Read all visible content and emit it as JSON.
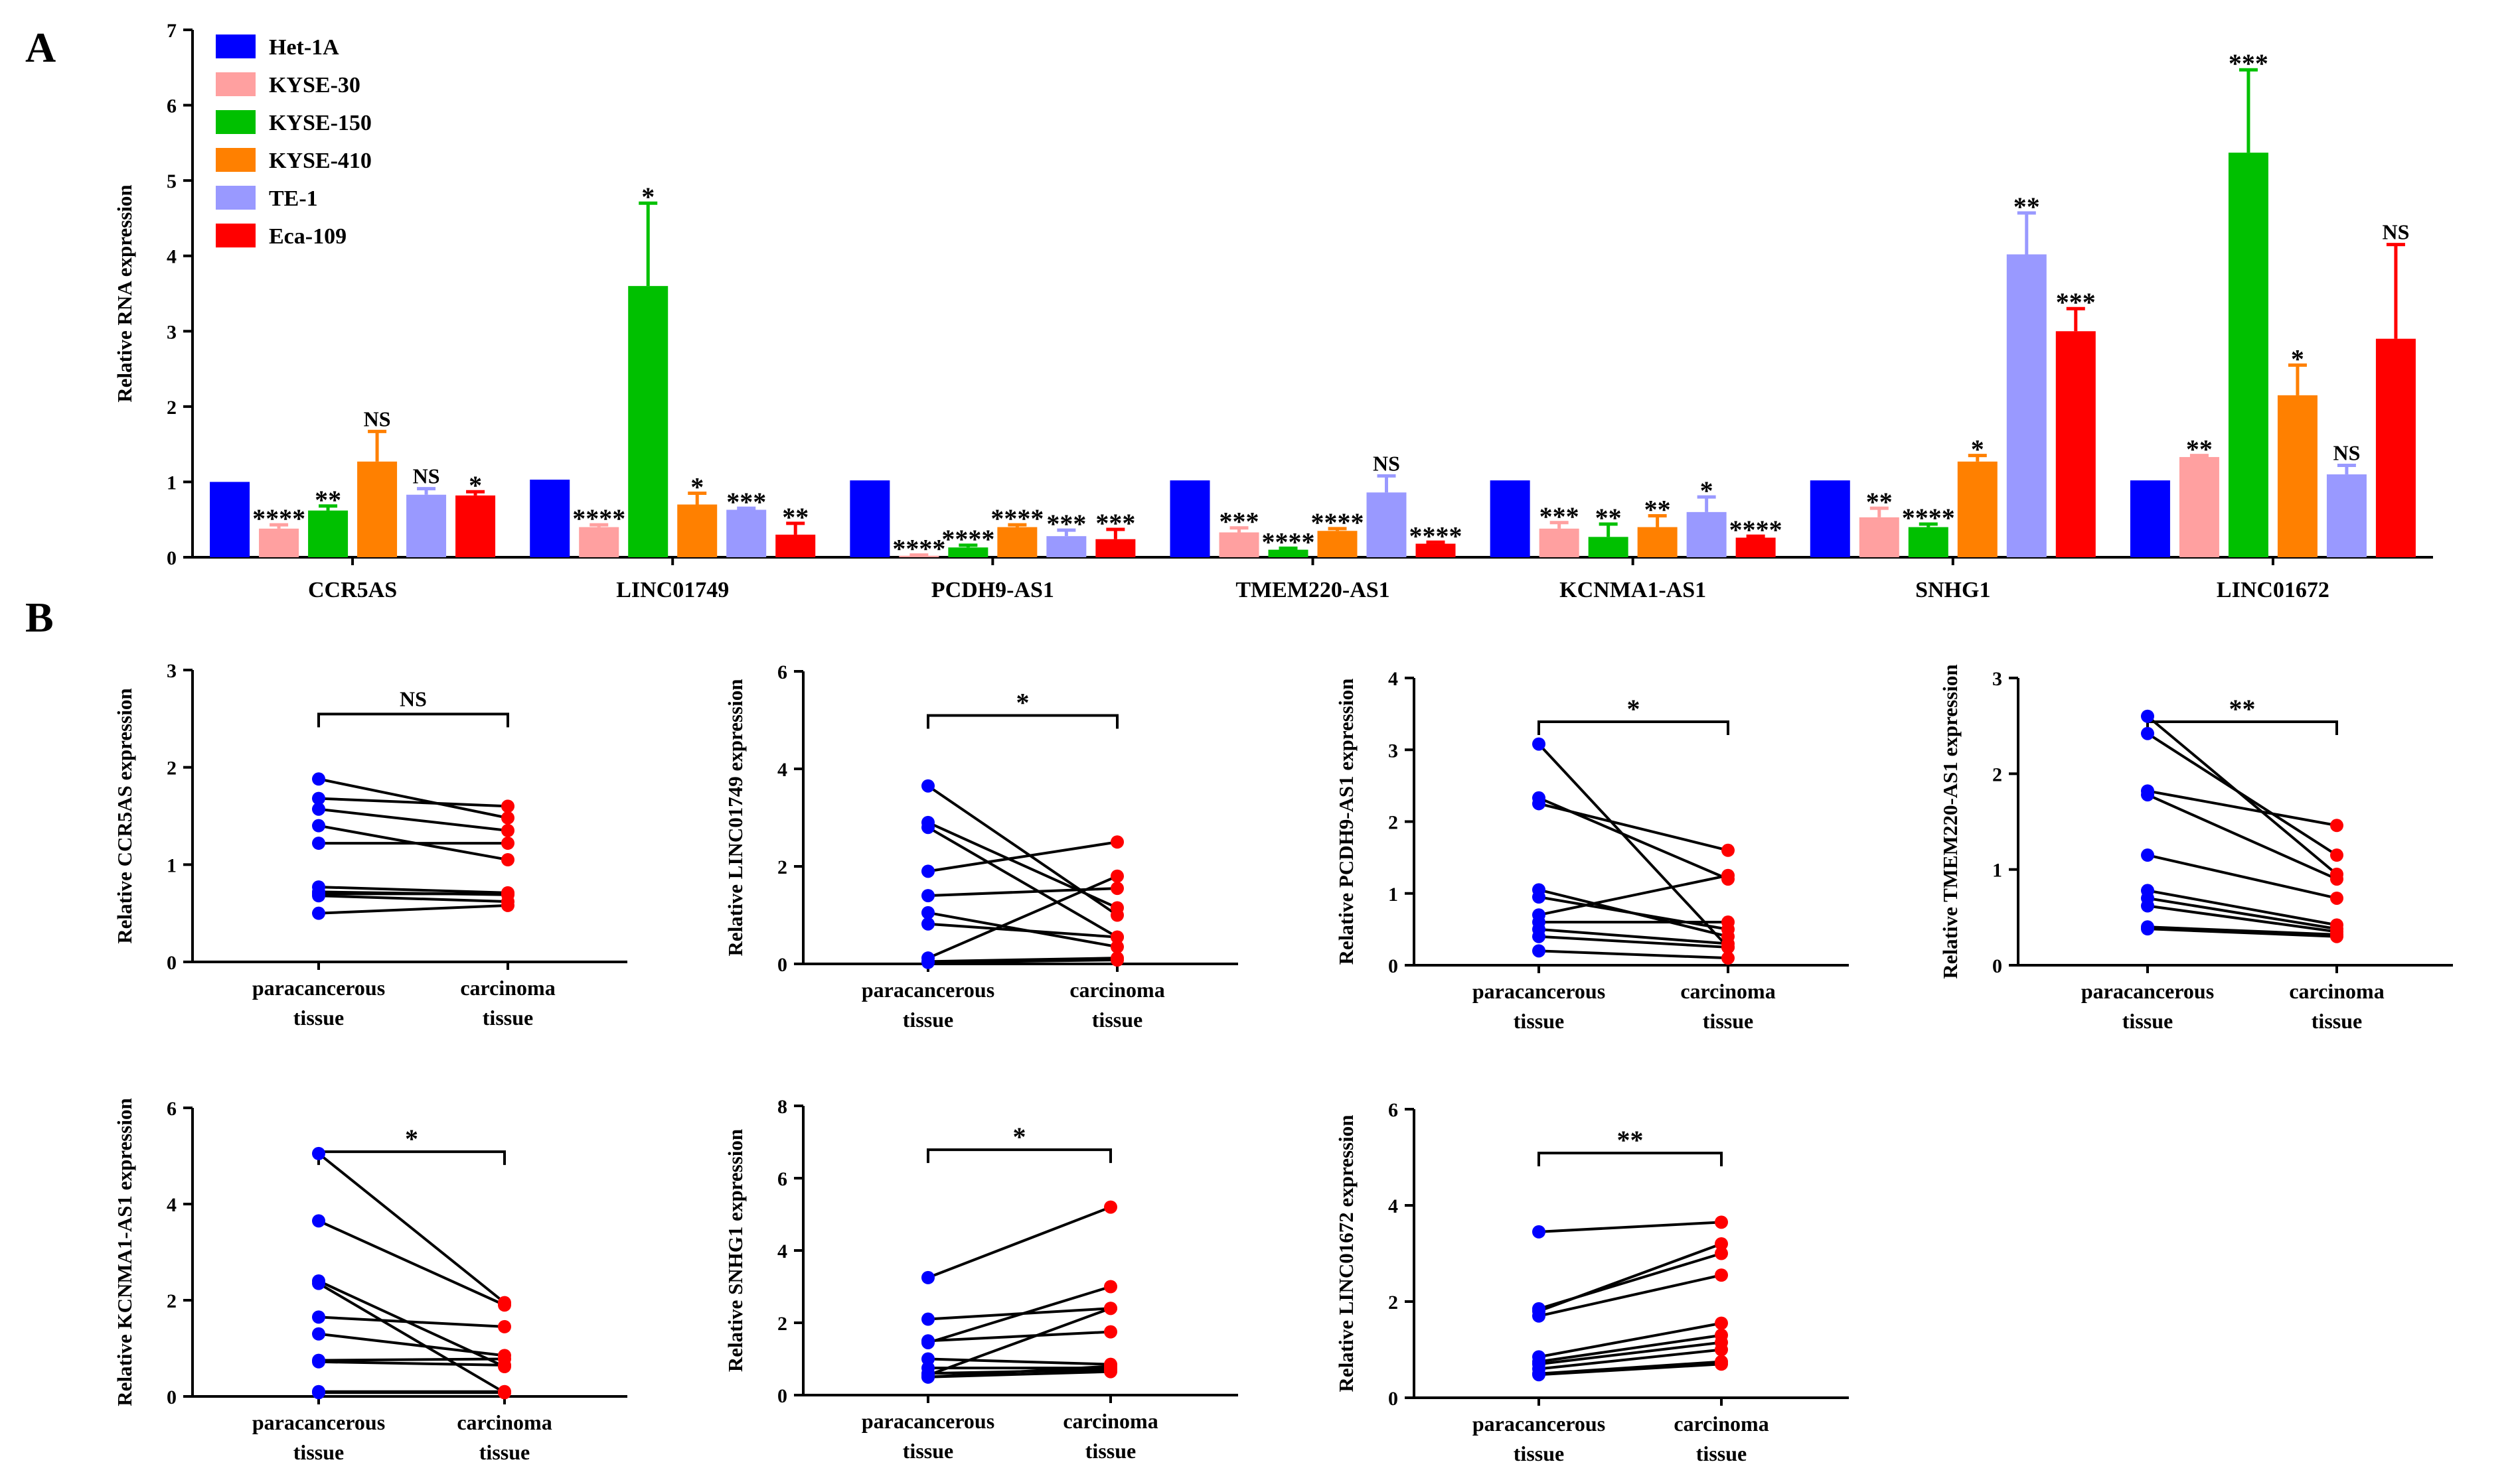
{
  "panel_labels": [
    "A",
    "B"
  ],
  "chart_data": [
    {
      "type": "bar",
      "ylabel": "Relative RNA expression",
      "ylim": [
        0,
        7
      ],
      "yticks": [
        0,
        1,
        2,
        3,
        4,
        5,
        6,
        7
      ],
      "categories": [
        "CCR5AS",
        "LINC01749",
        "PCDH9-AS1",
        "TMEM220-AS1",
        "KCNMA1-AS1",
        "SNHG1",
        "LINC01672"
      ],
      "legend_position": "top-left",
      "series": [
        {
          "name": "Het-1A",
          "color": "#0000ff",
          "values": [
            1.0,
            1.03,
            1.02,
            1.02,
            1.02,
            1.02,
            1.02
          ],
          "errors": [
            0,
            0,
            0,
            0,
            0,
            0,
            0
          ],
          "sig": [
            "",
            "",
            "",
            "",
            "",
            "",
            ""
          ]
        },
        {
          "name": "KYSE-30",
          "color": "#ffa0a0",
          "values": [
            0.38,
            0.4,
            0.02,
            0.33,
            0.38,
            0.53,
            1.33
          ],
          "errors": [
            0.05,
            0.03,
            0.01,
            0.06,
            0.08,
            0.12,
            0.02
          ],
          "sig": [
            "****",
            "****",
            "****",
            "***",
            "***",
            "**",
            "**"
          ]
        },
        {
          "name": "KYSE-150",
          "color": "#00c000",
          "values": [
            0.62,
            3.6,
            0.13,
            0.1,
            0.27,
            0.4,
            5.37
          ],
          "errors": [
            0.06,
            1.1,
            0.03,
            0.02,
            0.17,
            0.04,
            1.1
          ],
          "sig": [
            "**",
            "*",
            "****",
            "****",
            "**",
            "****",
            "***"
          ]
        },
        {
          "name": "KYSE-410",
          "color": "#ff8000",
          "values": [
            1.27,
            0.7,
            0.4,
            0.35,
            0.4,
            1.27,
            2.15
          ],
          "errors": [
            0.4,
            0.15,
            0.03,
            0.03,
            0.15,
            0.08,
            0.4
          ],
          "sig": [
            "NS",
            "*",
            "****",
            "****",
            "**",
            "*",
            "*"
          ]
        },
        {
          "name": "TE-1",
          "color": "#9999ff",
          "values": [
            0.83,
            0.63,
            0.28,
            0.86,
            0.6,
            4.02,
            1.1
          ],
          "errors": [
            0.08,
            0.02,
            0.08,
            0.22,
            0.2,
            0.55,
            0.12
          ],
          "sig": [
            "NS",
            "***",
            "***",
            "NS",
            "*",
            "**",
            "NS"
          ]
        },
        {
          "name": "Eca-109",
          "color": "#ff0000",
          "values": [
            0.82,
            0.3,
            0.24,
            0.18,
            0.26,
            3.0,
            2.9
          ],
          "errors": [
            0.05,
            0.15,
            0.13,
            0.02,
            0.02,
            0.3,
            1.25
          ],
          "sig": [
            "*",
            "**",
            "***",
            "****",
            "****",
            "***",
            "NS"
          ]
        }
      ]
    },
    {
      "type": "scatter",
      "ylabel": "Relative CCR5AS expression",
      "ylim": [
        0,
        3
      ],
      "yticks": [
        0,
        1,
        2,
        3
      ],
      "groups": [
        "paracancerous tissue",
        "carcinoma tissue"
      ],
      "significance": "NS",
      "paracancerous": [
        1.88,
        1.68,
        1.57,
        1.4,
        1.22,
        0.77,
        0.72,
        0.7,
        0.68,
        0.5
      ],
      "carcinoma": [
        1.48,
        1.6,
        1.35,
        1.05,
        1.22,
        0.71,
        0.69,
        0.7,
        0.62,
        0.58
      ]
    },
    {
      "type": "scatter",
      "ylabel": "Relative LINC01749 expression",
      "ylim": [
        0,
        6
      ],
      "yticks": [
        0,
        2,
        4,
        6
      ],
      "groups": [
        "paracancerous tissue",
        "carcinoma tissue"
      ],
      "significance": "*",
      "paracancerous": [
        3.65,
        2.9,
        2.8,
        1.9,
        1.4,
        1.05,
        0.82,
        0.12,
        0.05,
        0.03
      ],
      "carcinoma": [
        1.0,
        1.15,
        0.55,
        2.5,
        1.55,
        0.35,
        0.55,
        1.8,
        0.12,
        0.08
      ]
    },
    {
      "type": "scatter",
      "ylabel": "Relative PCDH9-AS1 expression",
      "ylim": [
        0,
        4
      ],
      "yticks": [
        0,
        1,
        2,
        3,
        4
      ],
      "groups": [
        "paracancerous tissue",
        "carcinoma tissue"
      ],
      "significance": "*",
      "paracancerous": [
        3.08,
        2.33,
        2.25,
        1.05,
        0.95,
        0.7,
        0.6,
        0.5,
        0.4,
        0.2
      ],
      "carcinoma": [
        0.25,
        1.2,
        1.6,
        0.4,
        0.5,
        1.25,
        0.6,
        0.3,
        0.25,
        0.1
      ]
    },
    {
      "type": "scatter",
      "ylabel": "Relative TMEM220-AS1 expression",
      "ylim": [
        0,
        3
      ],
      "yticks": [
        0,
        1,
        2,
        3
      ],
      "groups": [
        "paracancerous tissue",
        "carcinoma tissue"
      ],
      "significance": "**",
      "paracancerous": [
        2.6,
        2.42,
        1.82,
        1.78,
        1.15,
        0.78,
        0.7,
        0.62,
        0.4,
        0.38
      ],
      "carcinoma": [
        0.95,
        1.15,
        1.46,
        0.9,
        0.7,
        0.42,
        0.38,
        0.35,
        0.32,
        0.3
      ]
    },
    {
      "type": "scatter",
      "ylabel": "Relative KCNMA1-AS1 expression",
      "ylim": [
        0,
        6
      ],
      "yticks": [
        0,
        2,
        4,
        6
      ],
      "groups": [
        "paracancerous tissue",
        "carcinoma tissue"
      ],
      "significance": "*",
      "paracancerous": [
        5.05,
        3.65,
        2.4,
        2.35,
        1.65,
        1.3,
        0.75,
        0.72,
        0.1,
        0.08
      ],
      "carcinoma": [
        1.95,
        1.9,
        0.62,
        0.08,
        1.45,
        0.85,
        0.78,
        0.65,
        0.1,
        0.08
      ]
    },
    {
      "type": "scatter",
      "ylabel": "Relative SNHG1 expression",
      "ylim": [
        0,
        8
      ],
      "yticks": [
        0,
        2,
        4,
        6,
        8
      ],
      "groups": [
        "paracancerous tissue",
        "carcinoma tissue"
      ],
      "significance": "*",
      "paracancerous": [
        3.25,
        2.1,
        1.5,
        1.45,
        1.0,
        0.75,
        0.6,
        0.55,
        0.5,
        0.5
      ],
      "carcinoma": [
        5.2,
        2.4,
        1.75,
        3.0,
        0.85,
        0.75,
        0.7,
        2.4,
        0.65,
        0.8
      ]
    },
    {
      "type": "scatter",
      "ylabel": "Relative LINC01672 expression",
      "ylim": [
        0,
        6
      ],
      "yticks": [
        0,
        2,
        4,
        6
      ],
      "groups": [
        "paracancerous tissue",
        "carcinoma tissue"
      ],
      "significance": "**",
      "paracancerous": [
        3.45,
        1.85,
        1.8,
        1.7,
        0.85,
        0.75,
        0.7,
        0.6,
        0.5,
        0.48
      ],
      "carcinoma": [
        3.65,
        3.0,
        3.2,
        2.55,
        1.55,
        1.3,
        1.15,
        1.0,
        0.75,
        0.7
      ]
    }
  ]
}
